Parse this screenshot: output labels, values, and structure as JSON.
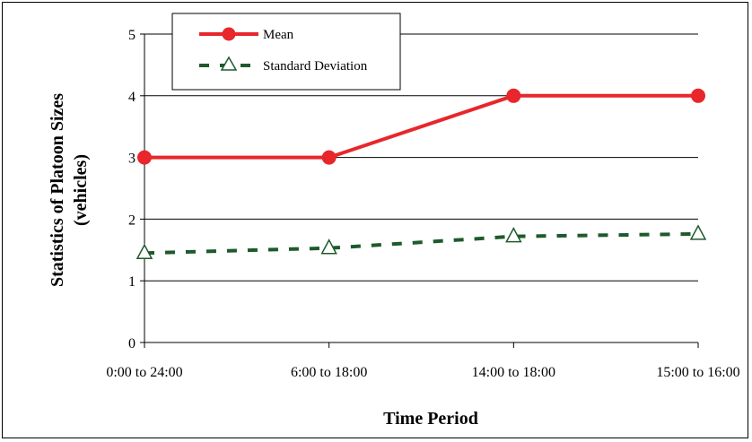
{
  "chart_data": {
    "type": "line",
    "categories": [
      "0:00 to 24:00",
      "6:00 to 18:00",
      "14:00 to 18:00",
      "15:00 to 16:00"
    ],
    "series": [
      {
        "name": "Mean",
        "values": [
          3,
          3,
          4,
          4
        ],
        "color": "#e8262b",
        "marker": "circle",
        "style": "solid"
      },
      {
        "name": "Standard Deviation",
        "values": [
          1.45,
          1.53,
          1.72,
          1.76
        ],
        "color": "#1e5a2c",
        "marker": "triangle-open",
        "style": "dashed"
      }
    ],
    "xlabel": "Time Period",
    "ylabel_line1": "Statistics of Platoon Sizes",
    "ylabel_line2": "(vehicles)",
    "ylim": [
      0,
      5
    ],
    "yticks": [
      0,
      1,
      2,
      3,
      4,
      5
    ],
    "grid": "horizontal",
    "legend_position": "top-left"
  }
}
